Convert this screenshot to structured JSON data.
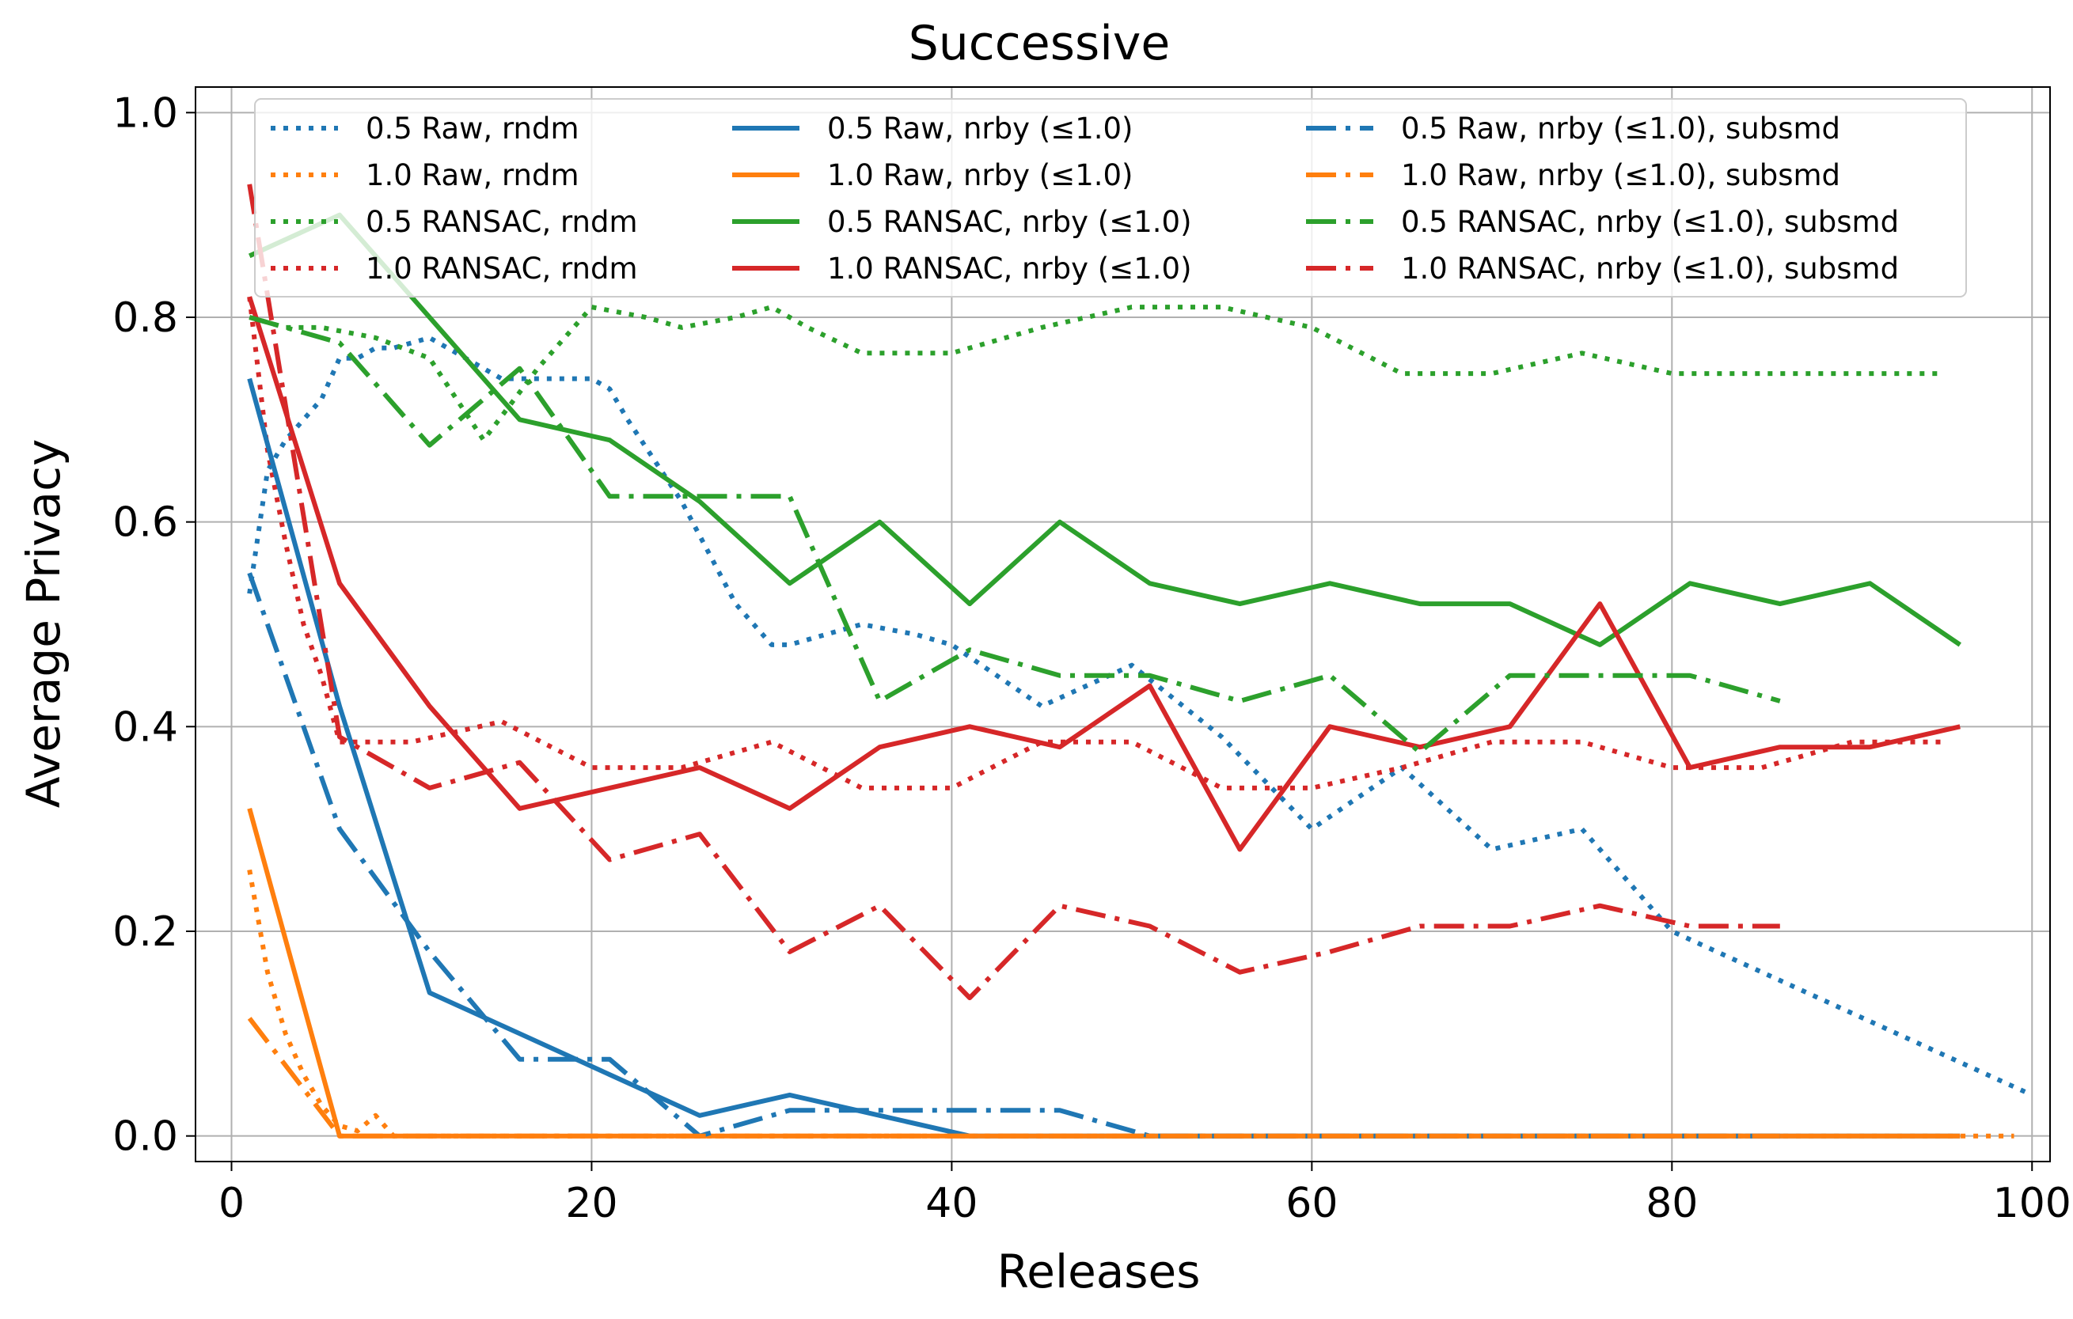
{
  "chart_data": {
    "type": "line",
    "title": "Successive",
    "xlabel": "Releases",
    "ylabel": "Average Privacy",
    "xlim": [
      -2,
      101
    ],
    "ylim": [
      -0.025,
      1.025
    ],
    "xticks": [
      0,
      20,
      40,
      60,
      80,
      100
    ],
    "xtick_labels": [
      "0",
      "20",
      "40",
      "60",
      "80",
      "100"
    ],
    "yticks": [
      0.0,
      0.2,
      0.4,
      0.6,
      0.8,
      1.0
    ],
    "ytick_labels": [
      "0.0",
      "0.2",
      "0.4",
      "0.6",
      "0.8",
      "1.0"
    ],
    "grid": true,
    "legend_position": "top",
    "series": [
      {
        "name": "0.5 Raw, rndm",
        "color": "#1f77b4",
        "style": "dotted",
        "x": [
          1,
          2,
          3,
          4,
          5,
          6,
          7,
          8,
          9,
          10,
          11,
          12,
          13,
          14,
          15,
          16,
          17,
          18,
          19,
          20,
          21,
          22,
          25,
          28,
          30,
          31,
          35,
          38,
          40,
          45,
          50,
          55,
          60,
          65,
          70,
          75,
          80,
          85,
          90,
          95,
          100
        ],
        "y": [
          0.53,
          0.65,
          0.68,
          0.7,
          0.72,
          0.76,
          0.76,
          0.77,
          0.77,
          0.775,
          0.78,
          0.77,
          0.76,
          0.75,
          0.74,
          0.74,
          0.74,
          0.74,
          0.74,
          0.74,
          0.73,
          0.7,
          0.62,
          0.52,
          0.48,
          0.48,
          0.5,
          0.49,
          0.48,
          0.42,
          0.46,
          0.39,
          0.3,
          0.36,
          0.28,
          0.3,
          0.2,
          0.16,
          0.12,
          0.08,
          0.04
        ]
      },
      {
        "name": "1.0 Raw, rndm",
        "color": "#ff7f0e",
        "style": "dotted",
        "x": [
          1,
          2,
          3,
          4,
          5,
          6,
          7,
          8,
          9,
          10,
          20,
          30,
          40,
          50,
          60,
          70,
          80,
          90,
          95,
          97,
          99
        ],
        "y": [
          0.26,
          0.16,
          0.1,
          0.06,
          0.03,
          0.01,
          0.005,
          0.02,
          0,
          0,
          0,
          0,
          0,
          0,
          0,
          0,
          0,
          0,
          0,
          0,
          0
        ]
      },
      {
        "name": "0.5 RANSAC, rndm",
        "color": "#2ca02c",
        "style": "dotted",
        "x": [
          1,
          3,
          5,
          8,
          11,
          14,
          17,
          20,
          23,
          25,
          28,
          30,
          32,
          35,
          40,
          45,
          50,
          55,
          60,
          65,
          70,
          75,
          80,
          85,
          90,
          95
        ],
        "y": [
          0.8,
          0.79,
          0.79,
          0.78,
          0.76,
          0.68,
          0.75,
          0.81,
          0.8,
          0.79,
          0.8,
          0.81,
          0.79,
          0.765,
          0.765,
          0.79,
          0.81,
          0.81,
          0.79,
          0.745,
          0.745,
          0.765,
          0.745,
          0.745,
          0.745,
          0.745
        ]
      },
      {
        "name": "1.0 RANSAC, rndm",
        "color": "#d62728",
        "style": "dotted",
        "x": [
          1,
          2,
          3,
          4,
          5,
          6,
          7,
          10,
          15,
          20,
          25,
          30,
          35,
          40,
          45,
          50,
          55,
          60,
          65,
          70,
          75,
          80,
          85,
          90,
          95
        ],
        "y": [
          0.82,
          0.67,
          0.58,
          0.5,
          0.45,
          0.385,
          0.385,
          0.385,
          0.405,
          0.36,
          0.36,
          0.385,
          0.34,
          0.34,
          0.385,
          0.385,
          0.34,
          0.34,
          0.36,
          0.385,
          0.385,
          0.36,
          0.36,
          0.385,
          0.385
        ]
      },
      {
        "name": "0.5 Raw, nrby (≤1.0)",
        "color": "#1f77b4",
        "style": "solid",
        "x": [
          1,
          6,
          11,
          16,
          21,
          26,
          31,
          36,
          41,
          46,
          51,
          56,
          61,
          66,
          71,
          76,
          81,
          86,
          91,
          96
        ],
        "y": [
          0.74,
          0.42,
          0.14,
          0.1,
          0.06,
          0.02,
          0.04,
          0.02,
          0,
          0,
          0,
          0,
          0,
          0,
          0,
          0,
          0,
          0,
          0,
          0
        ]
      },
      {
        "name": "1.0 Raw, nrby (≤1.0)",
        "color": "#ff7f0e",
        "style": "solid",
        "x": [
          1,
          6,
          11,
          16,
          21,
          26,
          31,
          36,
          41,
          46,
          51,
          56,
          61,
          66,
          71,
          76,
          81,
          86,
          91,
          96
        ],
        "y": [
          0.32,
          0,
          0,
          0,
          0,
          0,
          0,
          0,
          0,
          0,
          0,
          0,
          0,
          0,
          0,
          0,
          0,
          0,
          0,
          0
        ]
      },
      {
        "name": "0.5 RANSAC, nrby (≤1.0)",
        "color": "#2ca02c",
        "style": "solid",
        "x": [
          1,
          6,
          11,
          16,
          21,
          26,
          31,
          36,
          41,
          46,
          51,
          56,
          61,
          66,
          71,
          76,
          81,
          86,
          91,
          96
        ],
        "y": [
          0.86,
          0.9,
          0.8,
          0.7,
          0.68,
          0.62,
          0.54,
          0.6,
          0.52,
          0.6,
          0.54,
          0.52,
          0.54,
          0.52,
          0.52,
          0.48,
          0.54,
          0.52,
          0.54,
          0.48
        ]
      },
      {
        "name": "1.0 RANSAC, nrby (≤1.0)",
        "color": "#d62728",
        "style": "solid",
        "x": [
          1,
          6,
          11,
          16,
          21,
          26,
          31,
          36,
          41,
          46,
          51,
          56,
          61,
          66,
          71,
          76,
          81,
          86,
          91,
          96
        ],
        "y": [
          0.82,
          0.54,
          0.42,
          0.32,
          0.34,
          0.36,
          0.32,
          0.38,
          0.4,
          0.38,
          0.44,
          0.28,
          0.4,
          0.38,
          0.4,
          0.52,
          0.36,
          0.38,
          0.38,
          0.4
        ]
      },
      {
        "name": "0.5 Raw, nrby (≤1.0), subsmd",
        "color": "#1f77b4",
        "style": "dashdot",
        "x": [
          1,
          6,
          11,
          16,
          21,
          26,
          31,
          36,
          41,
          46,
          51,
          56,
          61,
          66,
          71,
          76,
          81,
          86
        ],
        "y": [
          0.55,
          0.3,
          0.18,
          0.075,
          0.075,
          0.0,
          0.025,
          0.025,
          0.025,
          0.025,
          0,
          0,
          0,
          0,
          0,
          0,
          0,
          0
        ]
      },
      {
        "name": "1.0 Raw, nrby (≤1.0), subsmd",
        "color": "#ff7f0e",
        "style": "dashdot",
        "x": [
          1,
          6,
          11,
          16,
          21,
          26,
          31,
          36,
          41,
          46,
          51,
          56,
          61,
          66,
          71,
          76,
          81,
          86
        ],
        "y": [
          0.115,
          0.0,
          0,
          0,
          0,
          0,
          0,
          0,
          0,
          0,
          0,
          0,
          0,
          0,
          0,
          0,
          0,
          0
        ]
      },
      {
        "name": "0.5 RANSAC, nrby (≤1.0), subsmd",
        "color": "#2ca02c",
        "style": "dashdot",
        "x": [
          1,
          6,
          11,
          16,
          21,
          26,
          31,
          36,
          41,
          46,
          51,
          56,
          61,
          66,
          71,
          76,
          81,
          86
        ],
        "y": [
          0.8,
          0.775,
          0.675,
          0.75,
          0.625,
          0.625,
          0.625,
          0.425,
          0.475,
          0.45,
          0.45,
          0.425,
          0.45,
          0.375,
          0.45,
          0.45,
          0.45,
          0.425
        ]
      },
      {
        "name": "1.0 RANSAC, nrby (≤1.0), subsmd",
        "color": "#d62728",
        "style": "dashdot",
        "x": [
          1,
          6,
          11,
          16,
          21,
          26,
          31,
          36,
          41,
          46,
          51,
          56,
          61,
          66,
          71,
          76,
          81,
          86
        ],
        "y": [
          0.93,
          0.39,
          0.34,
          0.365,
          0.27,
          0.295,
          0.18,
          0.225,
          0.135,
          0.225,
          0.205,
          0.16,
          0.18,
          0.205,
          0.205,
          0.225,
          0.205,
          0.205
        ]
      }
    ]
  }
}
